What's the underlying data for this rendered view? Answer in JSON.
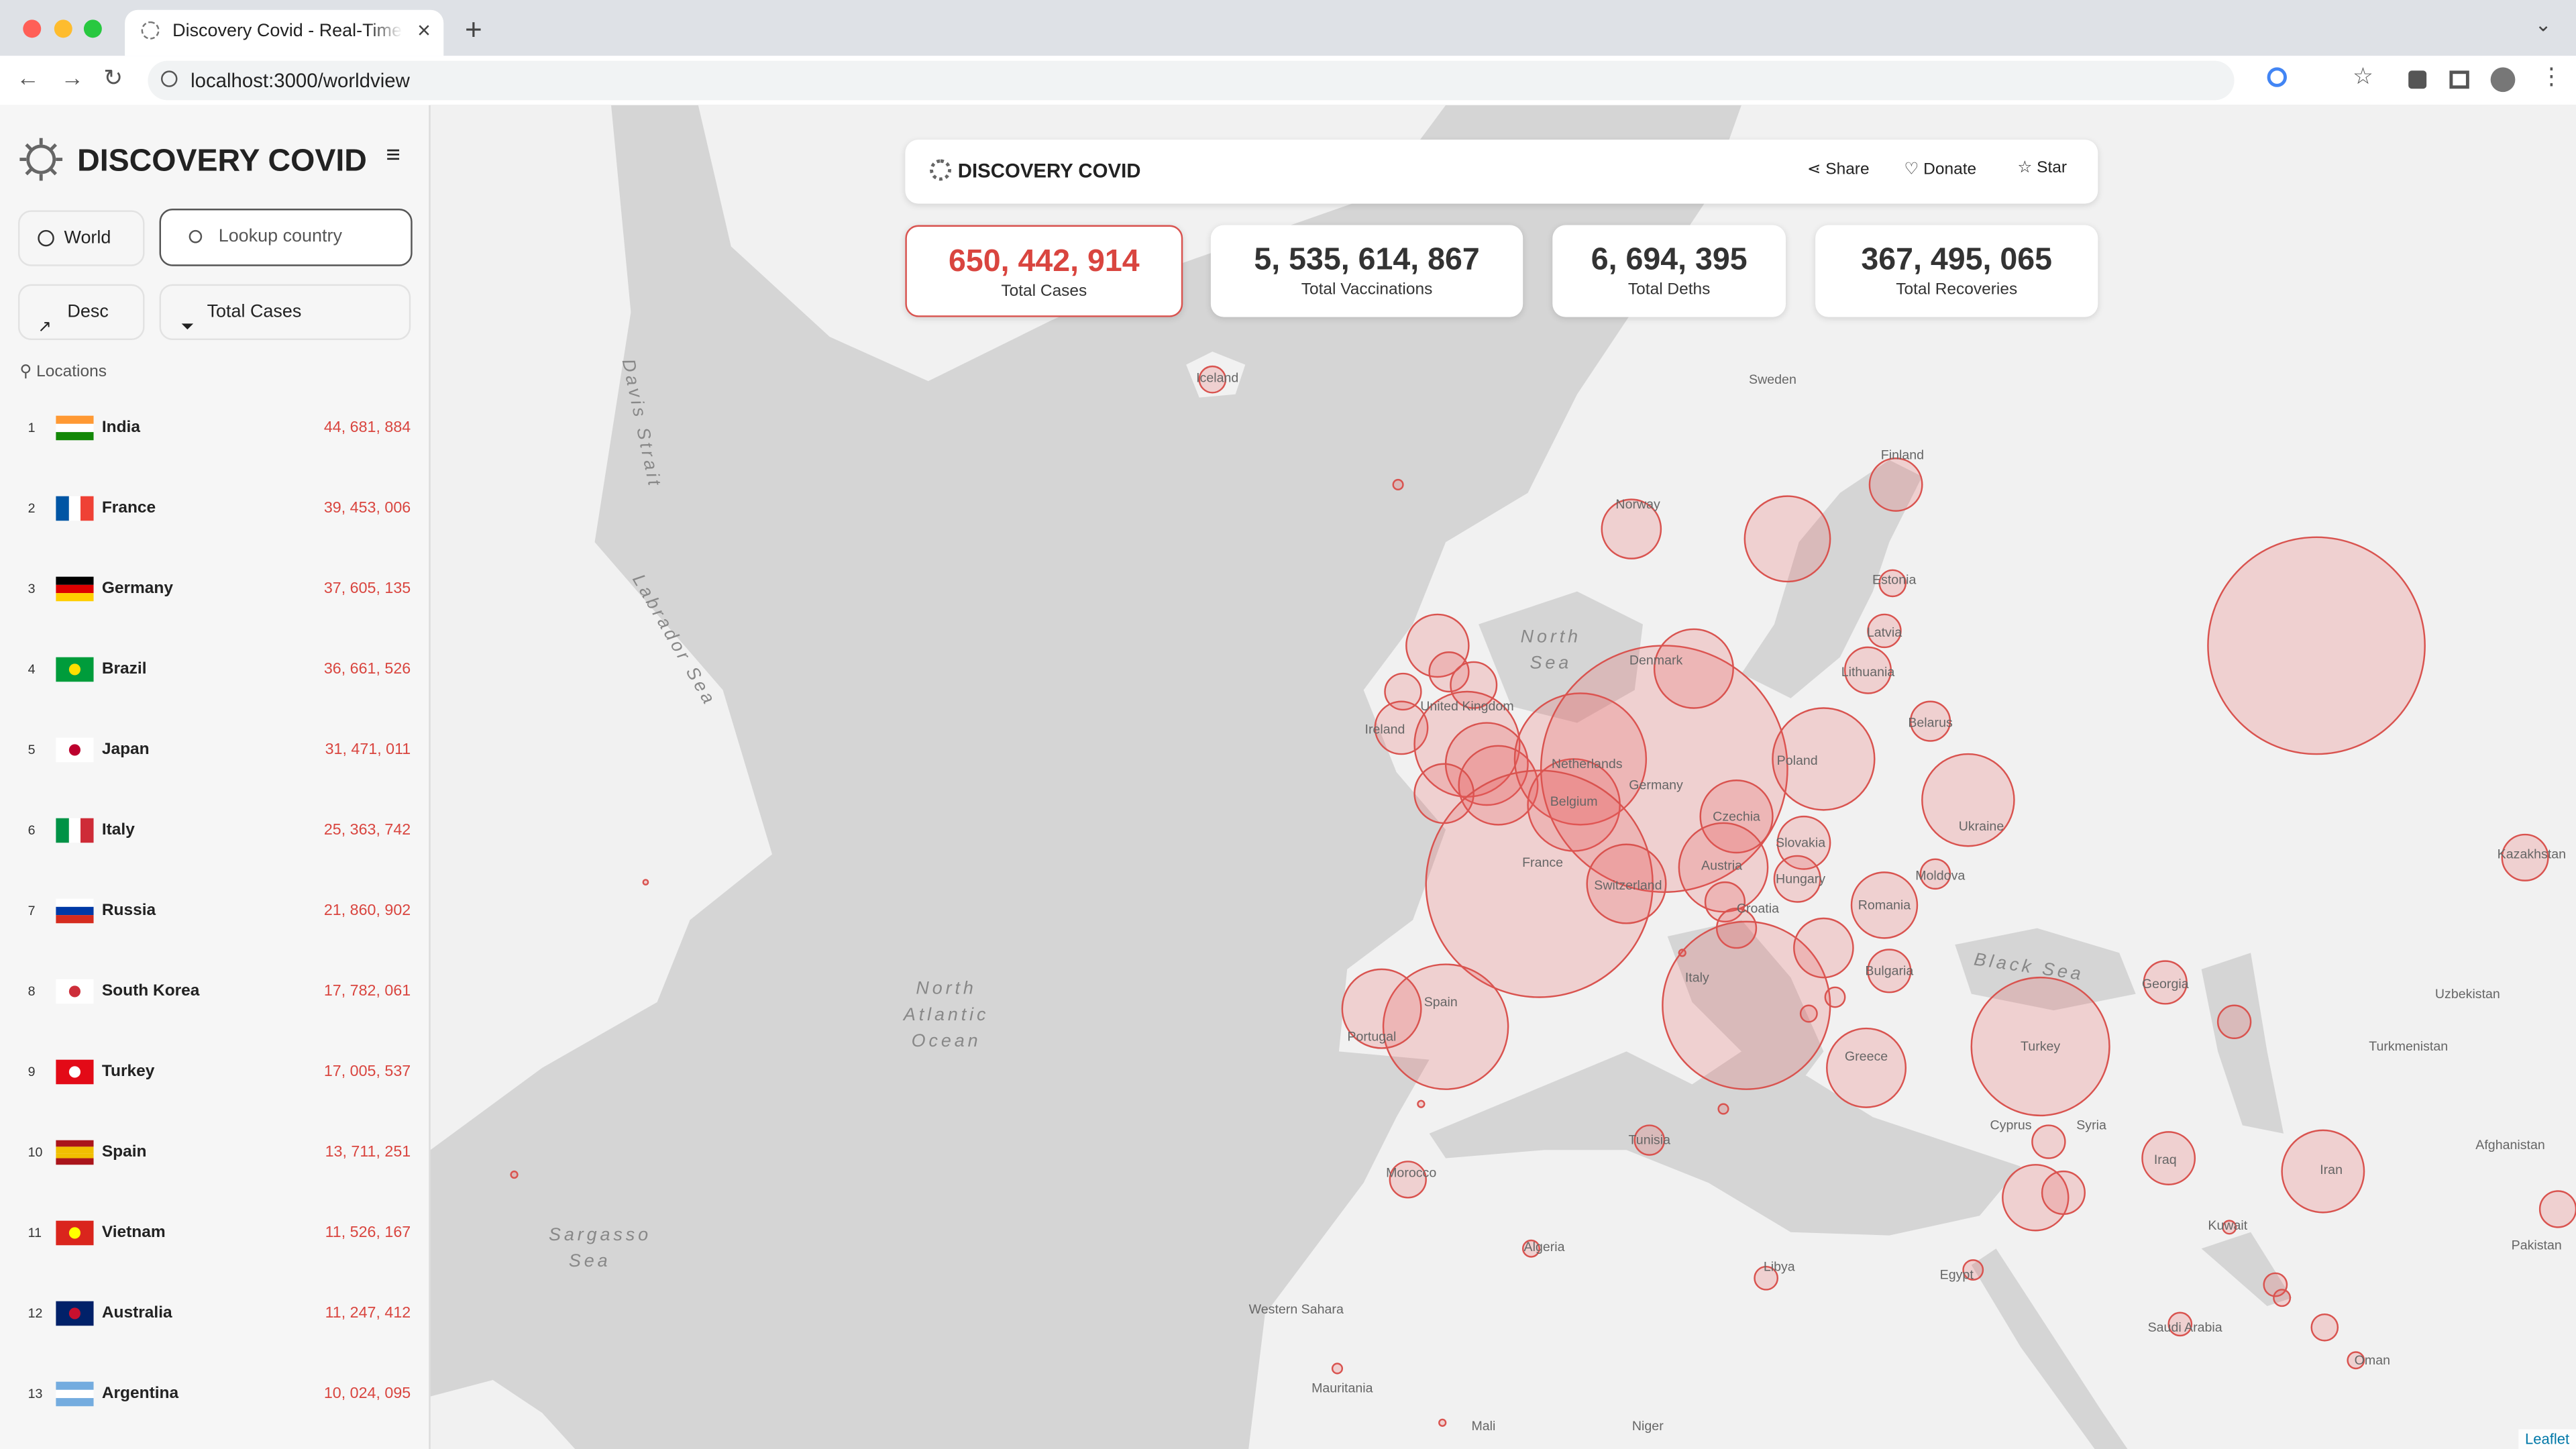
{
  "browser": {
    "tab_title": "Discovery Covid - Real-Time C",
    "url": "localhost:3000/worldview"
  },
  "sidebar": {
    "title": "DISCOVERY COVID",
    "scope": "World",
    "search_placeholder": "Lookup country",
    "sort": "Desc",
    "metric": "Total Cases",
    "locations_heading": "Locations",
    "locations": [
      {
        "rank": 1,
        "name": "India",
        "value": "44, 681, 884"
      },
      {
        "rank": 2,
        "name": "France",
        "value": "39, 453, 006"
      },
      {
        "rank": 3,
        "name": "Germany",
        "value": "37, 605, 135"
      },
      {
        "rank": 4,
        "name": "Brazil",
        "value": "36, 661, 526"
      },
      {
        "rank": 5,
        "name": "Japan",
        "value": "31, 471, 011"
      },
      {
        "rank": 6,
        "name": "Italy",
        "value": "25, 363, 742"
      },
      {
        "rank": 7,
        "name": "Russia",
        "value": "21, 860, 902"
      },
      {
        "rank": 8,
        "name": "South Korea",
        "value": "17, 782, 061"
      },
      {
        "rank": 9,
        "name": "Turkey",
        "value": "17, 005, 537"
      },
      {
        "rank": 10,
        "name": "Spain",
        "value": "13, 711, 251"
      },
      {
        "rank": 11,
        "name": "Vietnam",
        "value": "11, 526, 167"
      },
      {
        "rank": 12,
        "name": "Australia",
        "value": "11, 247, 412"
      },
      {
        "rank": 13,
        "name": "Argentina",
        "value": "10, 024, 095"
      }
    ]
  },
  "header": {
    "title": "DISCOVERY COVID",
    "actions": [
      "Share",
      "Donate",
      "Star"
    ]
  },
  "stats": [
    {
      "value": "650, 442, 914",
      "label": "Total Cases"
    },
    {
      "value": "5, 535, 614, 867",
      "label": "Total Vaccinations"
    },
    {
      "value": "6, 694, 395",
      "label": "Total Deths"
    },
    {
      "value": "367, 495, 065",
      "label": "Total Recoveries"
    }
  ],
  "map": {
    "attribution": "Leaflet",
    "labels": [
      "Davis Strait",
      "Labrador Sea",
      "North Atlantic Ocean",
      "Sargasso Sea",
      "North Sea",
      "Black Sea",
      "Iceland",
      "Sweden",
      "Finland",
      "Norway",
      "Estonia",
      "Latvia",
      "Lithuania",
      "Belarus",
      "Denmark",
      "Ireland",
      "United Kingdom",
      "Netherlands",
      "Belgium",
      "Germany",
      "Poland",
      "Ukraine",
      "Czechia",
      "Slovakia",
      "Moldova",
      "Austria",
      "Hungary",
      "Romania",
      "France",
      "Switzerland",
      "Croatia",
      "Italy",
      "Bulgaria",
      "Spain",
      "Portugal",
      "Greece",
      "Georgia",
      "Turkey",
      "Kazakhstan",
      "Uzbekistan",
      "Turkmenistan",
      "Afghanistan",
      "Iran",
      "Iraq",
      "Syria",
      "Pakistan",
      "Tunisia",
      "Morocco",
      "Algeria",
      "Libya",
      "Egypt",
      "Saudi Arabia",
      "Western Sahara",
      "Mauritania",
      "Mali",
      "Niger",
      "Oman",
      "Kuwait",
      "Cyprus"
    ]
  }
}
